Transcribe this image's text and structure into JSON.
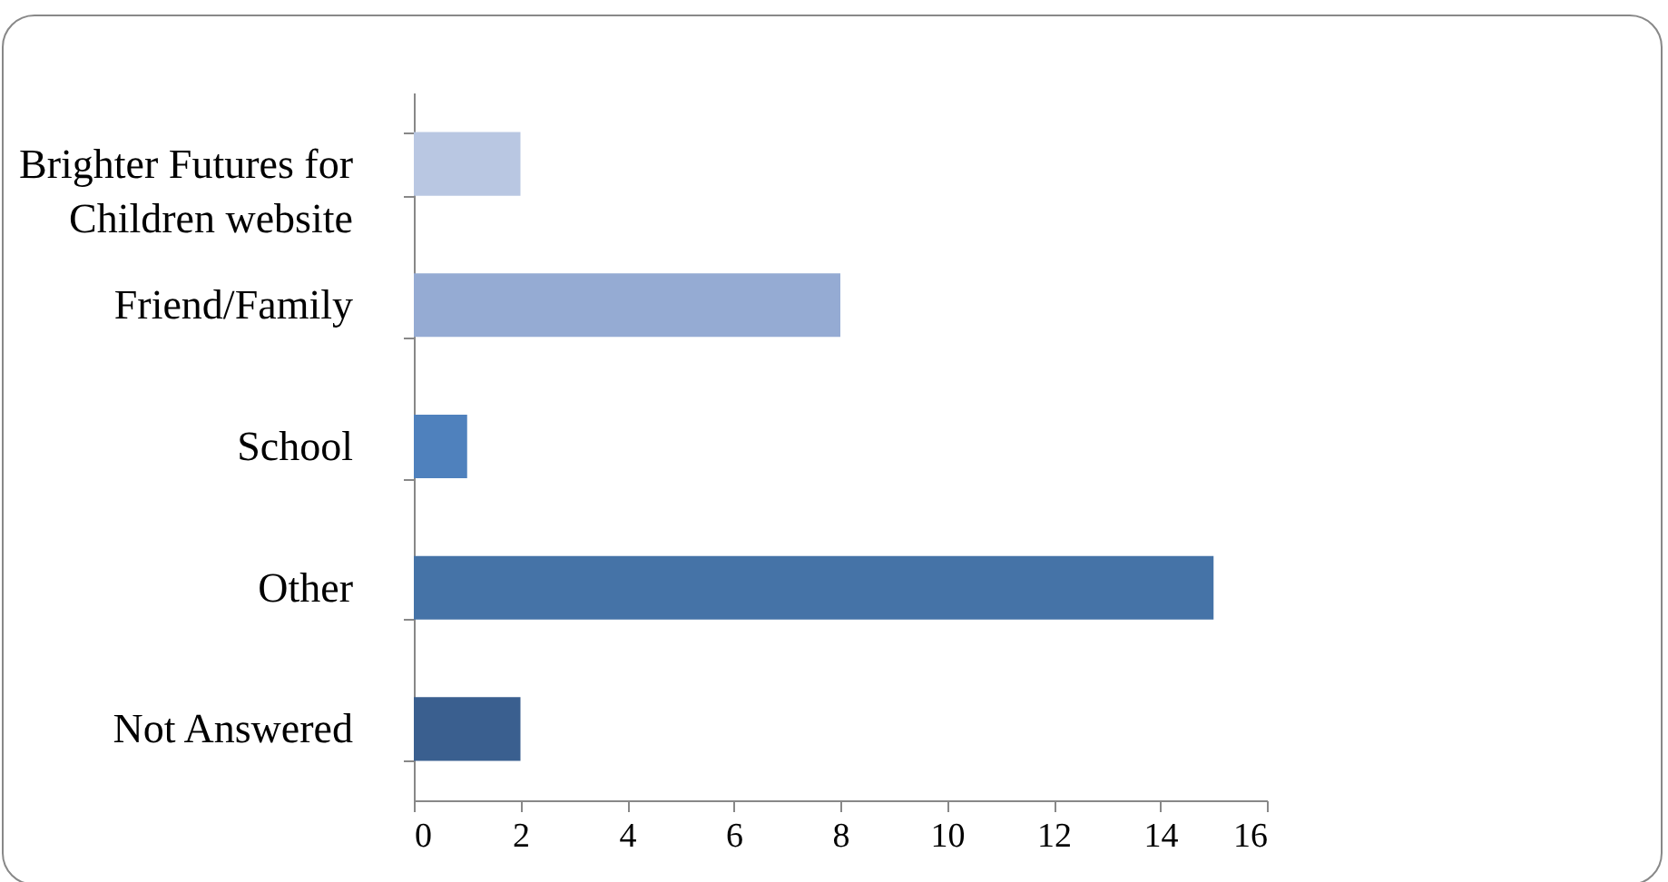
{
  "chart_data": {
    "type": "bar",
    "orientation": "horizontal",
    "categories": [
      "Brighter Futures for Children website",
      "Friend/Family",
      "School",
      "Other",
      "Not Answered"
    ],
    "values": [
      2,
      8,
      1,
      15,
      2
    ],
    "colors": [
      "#b9c7e2",
      "#95abd3",
      "#4f81bd",
      "#4573a7",
      "#3a5f8f"
    ],
    "xlim": [
      0,
      16
    ],
    "xticks": [
      0,
      2,
      4,
      6,
      8,
      10,
      12,
      14,
      16
    ],
    "grid": false,
    "legend": false
  }
}
